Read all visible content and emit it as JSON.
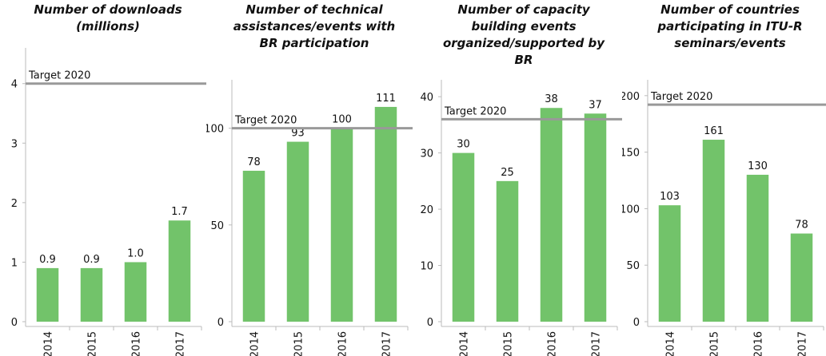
{
  "chart_data": [
    {
      "type": "bar",
      "title": "Number of downloads (millions)",
      "categories": [
        "2014",
        "2015",
        "2016",
        "2017"
      ],
      "values": [
        0.9,
        0.9,
        1.0,
        1.7
      ],
      "value_labels": [
        "0.9",
        "0.9",
        "1.0",
        "1.7"
      ],
      "color": "#72c36a",
      "ylim": [
        0,
        4.6
      ],
      "yticks": [
        0,
        1,
        2,
        3,
        4
      ],
      "target_label": "Target 2020",
      "target": 4
    },
    {
      "type": "bar",
      "title": "Number of technical assistances/events with BR participation",
      "categories": [
        "2014",
        "2015",
        "2016",
        "2017"
      ],
      "values": [
        78,
        93,
        100,
        111
      ],
      "color": "#72c36a",
      "ylim": [
        0,
        125
      ],
      "yticks": [
        0,
        50,
        100
      ],
      "target_label": "Target 2020",
      "target": 100
    },
    {
      "type": "bar",
      "title": "Number of capacity building events organized/supported by BR",
      "categories": [
        "2014",
        "2015",
        "2016",
        "2017"
      ],
      "values": [
        30,
        25,
        38,
        37
      ],
      "color": "#72c36a",
      "ylim": [
        0,
        43
      ],
      "yticks": [
        0,
        10,
        20,
        30,
        40
      ],
      "target_label": "Target 2020",
      "target": 36
    },
    {
      "type": "bar",
      "title": "Number of countries participating in ITU-R seminars/events",
      "categories": [
        "2014",
        "2015",
        "2016",
        "2017"
      ],
      "values": [
        103,
        161,
        130,
        78
      ],
      "color": "#72c36a",
      "ylim": [
        0,
        214
      ],
      "yticks": [
        0,
        50,
        100,
        150,
        200
      ],
      "target_label": "Target 2020",
      "target": 192
    }
  ]
}
